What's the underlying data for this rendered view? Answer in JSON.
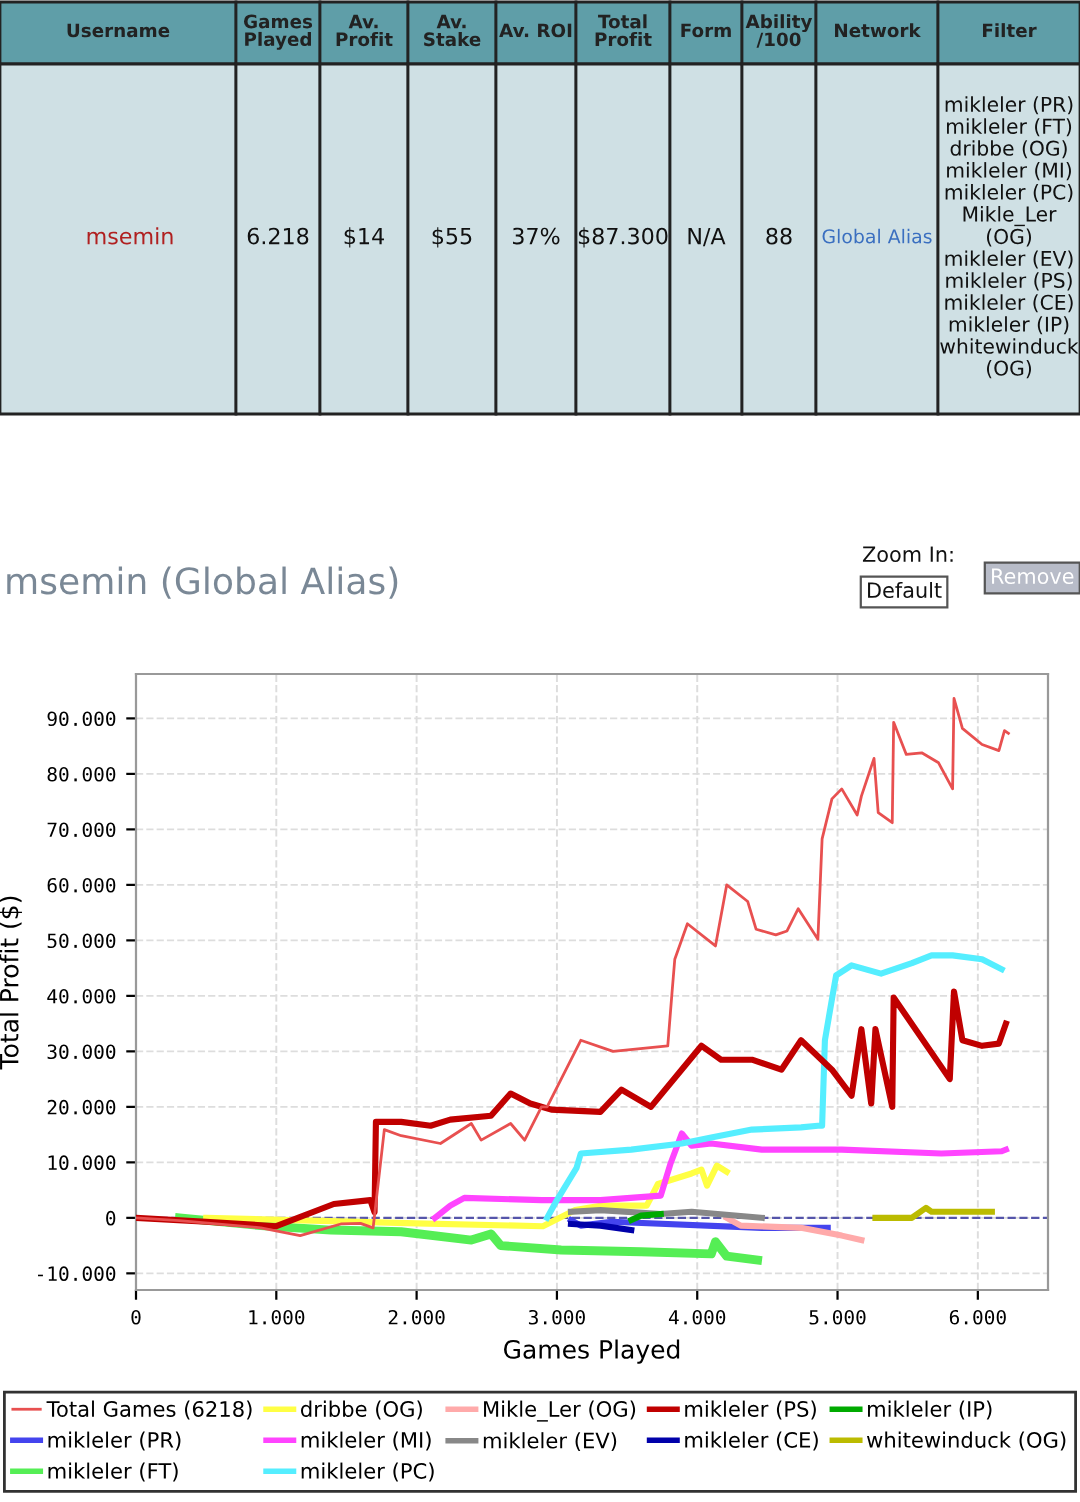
{
  "chart_data": [
    {
      "type": "other",
      "categories": [
        "Username",
        "Games\nPlayed",
        "Av.\nProfit",
        "Av.\nStake",
        "Av. ROI",
        "Total\nProfit",
        "Form",
        "Ability\n/100",
        "Network",
        "Filter"
      ],
      "annotations": [
        "msemin",
        "6.218",
        "$14",
        "$55",
        "37%",
        "$87.300",
        "N/A",
        "88",
        "Global Alias",
        "mikleler (PR)\nmikleler (FT)\ndribbe (OG)\nmikleler (MI)\nmikleler (PC)\nMikle_Ler\n(OG)\nmikleler (EV)\nmikleler (PS)\nmikleler (CE)\nmikleler (IP)\nwhitewinduck\n(OG)"
      ]
    },
    {
      "type": "line",
      "title": "msemin (Global Alias)",
      "xlabel": "Games Played",
      "ylabel": "Total Profit ($)",
      "annotations": [
        "Zoom In:",
        "Default",
        "Remove"
      ],
      "xlim": [
        0,
        6500
      ],
      "ylim": [
        -13000,
        98000
      ],
      "xticks": [
        {
          "value": 0,
          "label": "0"
        },
        {
          "value": 1000,
          "label": "1.000"
        },
        {
          "value": 2000,
          "label": "2.000"
        },
        {
          "value": 3000,
          "label": "3.000"
        },
        {
          "value": 4000,
          "label": "4.000"
        },
        {
          "value": 5000,
          "label": "5.000"
        },
        {
          "value": 6000,
          "label": "6.000"
        }
      ],
      "yticks": [
        {
          "value": -10000,
          "label": "-10.000"
        },
        {
          "value": 0,
          "label": "0"
        },
        {
          "value": 10000,
          "label": "10.000"
        },
        {
          "value": 20000,
          "label": "20.000"
        },
        {
          "value": 30000,
          "label": "30.000"
        },
        {
          "value": 40000,
          "label": "40.000"
        },
        {
          "value": 50000,
          "label": "50.000"
        },
        {
          "value": 60000,
          "label": "60.000"
        },
        {
          "value": 70000,
          "label": "70.000"
        },
        {
          "value": 80000,
          "label": "80.000"
        },
        {
          "value": 90000,
          "label": "90.000"
        }
      ],
      "grid": true,
      "legend": "bottom",
      "marker": "none",
      "line_style": "solid",
      "ref_lines": [
        {
          "axis": "y",
          "value": 0,
          "color": "#5555aa",
          "line_style": "dashed"
        }
      ],
      "series": [
        {
          "name": "Total Games (6218)",
          "color": "#e85050",
          "x": [
            0,
            310,
            890,
            1170,
            1460,
            1600,
            1690,
            1770,
            1890,
            2170,
            2390,
            2460,
            2670,
            2770,
            2890,
            2930,
            3170,
            3400,
            3790,
            3820,
            3840,
            3930,
            4130,
            4210,
            4360,
            4420,
            4560,
            4640,
            4720,
            4860,
            4890,
            4960,
            5030,
            5140,
            5170,
            5260,
            5290,
            5390,
            5400,
            5490,
            5600,
            5720,
            5820,
            5830,
            5890,
            6030,
            6150,
            6190,
            6218
          ],
          "values": [
            0,
            -500,
            -1800,
            -3200,
            -1100,
            -1000,
            -1800,
            15900,
            14800,
            13400,
            17000,
            14000,
            17000,
            14000,
            20000,
            20000,
            32000,
            30000,
            31000,
            40500,
            46600,
            53000,
            49000,
            60000,
            57000,
            52000,
            51000,
            51700,
            55700,
            50200,
            68300,
            75500,
            77300,
            72600,
            76000,
            82800,
            73000,
            71200,
            89300,
            83500,
            83800,
            82000,
            77300,
            93600,
            88200,
            85300,
            84200,
            87800,
            87300
          ]
        },
        {
          "name": "mikleler (PR)",
          "color": "#4444ee",
          "x": [
            3100,
            3170,
            3390,
            4460,
            4930
          ],
          "values": [
            -400,
            -1400,
            -700,
            -1800,
            -1800
          ]
        },
        {
          "name": "mikleler (FT)",
          "color": "#55ee55",
          "x": [
            310,
            890,
            1390,
            1890,
            2390,
            2530,
            2600,
            3030,
            3600,
            4100,
            4130,
            4210,
            4430
          ],
          "values": [
            0,
            -1400,
            -2200,
            -2500,
            -4000,
            -2900,
            -5000,
            -5800,
            -6100,
            -6500,
            -4300,
            -6900,
            -7600
          ]
        },
        {
          "name": "dribbe (OG)",
          "color": "#ffff44",
          "x": [
            500,
            2000,
            2900,
            3130,
            3310,
            3640,
            3720,
            3960,
            4030,
            4070,
            4140,
            4210
          ],
          "values": [
            0,
            -1000,
            -1500,
            1400,
            2200,
            2200,
            6100,
            8000,
            8700,
            5800,
            9400,
            8300
          ]
        },
        {
          "name": "mikleler (MI)",
          "color": "#ff44ff",
          "x": [
            2130,
            2240,
            2340,
            2890,
            3310,
            3740,
            3810,
            3890,
            3960,
            4100,
            4460,
            5030,
            5740,
            6170,
            6200
          ],
          "values": [
            0,
            2200,
            3600,
            3200,
            3200,
            4000,
            9800,
            15200,
            13000,
            13400,
            12300,
            12300,
            11600,
            12000,
            12300
          ]
        },
        {
          "name": "mikleler (PC)",
          "color": "#55eeff",
          "x": [
            2930,
            3000,
            3140,
            3170,
            3530,
            3890,
            4100,
            4390,
            4740,
            4860,
            4890,
            4910,
            4960,
            4990,
            5100,
            5310,
            5530,
            5670,
            5820,
            6030,
            6170
          ],
          "values": [
            0,
            3200,
            9000,
            11600,
            12300,
            13400,
            14500,
            15900,
            16300,
            16600,
            16600,
            32000,
            39400,
            43700,
            45500,
            44000,
            45900,
            47300,
            47300,
            46600,
            44800
          ]
        },
        {
          "name": "Mikle_Ler (OG)",
          "color": "#ffaaaa",
          "x": [
            4210,
            4310,
            4740,
            5030,
            5170
          ],
          "values": [
            0,
            -1400,
            -1800,
            -3200,
            -4000
          ]
        },
        {
          "name": "mikleler (EV)",
          "color": "#888888",
          "x": [
            3100,
            3310,
            3740,
            3960,
            4460
          ],
          "values": [
            1100,
            1400,
            700,
            1100,
            0
          ]
        },
        {
          "name": "mikleler (PS)",
          "color": "#c00000",
          "x": [
            0,
            500,
            1000,
            1410,
            1670,
            1700,
            1710,
            1890,
            2100,
            2240,
            2530,
            2670,
            2810,
            2960,
            3310,
            3460,
            3670,
            4030,
            4170,
            4390,
            4600,
            4740,
            4960,
            5100,
            5170,
            5240,
            5270,
            5390,
            5400,
            5800,
            5830,
            5890,
            6030,
            6150,
            6200
          ],
          "values": [
            0,
            -700,
            -1500,
            2500,
            3200,
            1000,
            17300,
            17300,
            16600,
            17700,
            18400,
            22400,
            20600,
            19500,
            19100,
            23100,
            20000,
            31000,
            28500,
            28500,
            26700,
            32000,
            26700,
            22000,
            34000,
            20600,
            34000,
            20000,
            39700,
            25000,
            40800,
            32000,
            31000,
            31400,
            35000
          ]
        },
        {
          "name": "mikleler (CE)",
          "color": "#0000aa",
          "x": [
            3100,
            3310,
            3530
          ],
          "values": [
            -1100,
            -1400,
            -2200
          ]
        },
        {
          "name": "mikleler (IP)",
          "color": "#00aa00",
          "x": [
            3530,
            3600,
            3740
          ],
          "values": [
            -400,
            400,
            700
          ]
        },
        {
          "name": "whitewinduck (OG)",
          "color": "#bbbb00",
          "x": [
            5270,
            5530,
            5630,
            5670,
            6100
          ],
          "values": [
            0,
            0,
            1800,
            1100,
            1100
          ]
        }
      ]
    }
  ]
}
